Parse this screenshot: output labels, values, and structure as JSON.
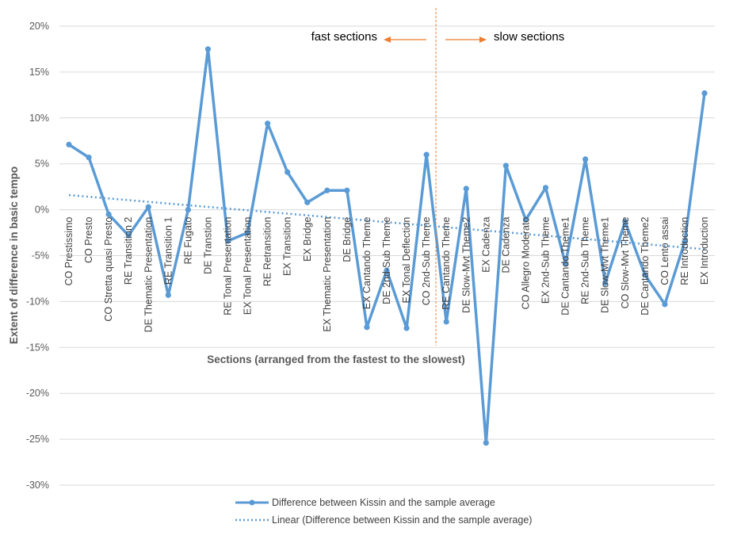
{
  "chart_data": {
    "type": "line",
    "title": "",
    "xlabel": "Sections (arranged from the fastest to the slowest)",
    "ylabel": "Extent of difference in basic tempo",
    "ylim": [
      -30,
      20
    ],
    "yticks": [
      20,
      15,
      10,
      5,
      0,
      -5,
      -10,
      -15,
      -20,
      -25,
      -30
    ],
    "ytick_labels": [
      "20%",
      "15%",
      "10%",
      "5%",
      "0%",
      "-5%",
      "-10%",
      "-15%",
      "-20%",
      "-25%",
      "-30%"
    ],
    "grid": true,
    "legend_placement": "bottom",
    "categories": [
      "CO Prestissimo",
      "CO Presto",
      "CO Stretta quasi Presto",
      "RE Transition 2",
      "DE Thematic Presentation",
      "RE Transition 1",
      "RE Fugato",
      "DE Transtion",
      "RE Tonal Presentation",
      "EX Tonal Presentation",
      "RE Retransition",
      "EX Transition",
      "EX Bridge",
      "EX Thematic Presentation",
      "DE Bridge",
      "EX Cantando Theme",
      "DE 2nd-Sub Theme",
      "EX Tonal Deflection",
      "CO 2nd-Sub Theme",
      "RE Cantando Theme",
      "DE Slow-Mvt Theme2",
      "EX Cadenza",
      "DE Cadenza",
      "CO Allegro Moderato",
      "EX 2nd-Sub Theme",
      "DE Cantando Theme1",
      "RE 2nd-Sub Theme",
      "DE Slow-Mvt Theme1",
      "CO Slow-Mvt Theme",
      "DE Cantando Theme2",
      "CO Lento assai",
      "RE Introduction",
      "EX Introduction"
    ],
    "series": [
      {
        "name": "Difference between Kissin and the sample average",
        "color": "#5B9BD5",
        "values": [
          7.1,
          5.7,
          -0.5,
          -2.8,
          0.3,
          -9.3,
          0.0,
          17.5,
          -3.4,
          -2.5,
          9.4,
          4.1,
          0.8,
          2.1,
          2.1,
          -12.8,
          -6.6,
          -12.9,
          6.0,
          -12.2,
          2.3,
          -25.4,
          4.8,
          -1.1,
          2.4,
          -5.9,
          5.5,
          -8.0,
          -1.3,
          -7.1,
          -10.3,
          -3.5,
          12.7
        ]
      },
      {
        "name": "Linear (Difference between Kissin and the sample average)",
        "color": "#5B9BD5",
        "style": "dotted",
        "values_start_end": [
          1.6,
          -4.3
        ]
      }
    ],
    "annotations": {
      "fast_label": "fast sections",
      "slow_label": "slow sections",
      "divider_after_category": "CO 2nd-Sub Theme",
      "annotation_color": "#ED7D31"
    }
  }
}
